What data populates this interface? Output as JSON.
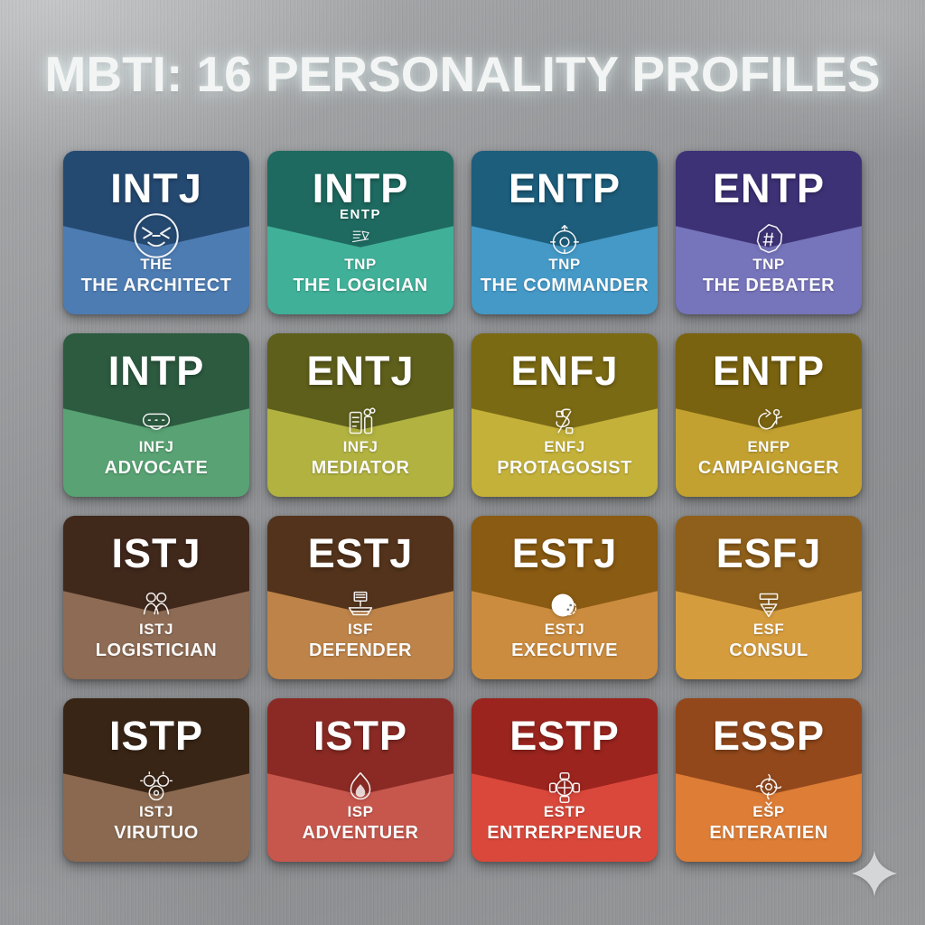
{
  "title": "MBTI: 16 PERSONALITY PROFILES",
  "colors": {
    "background": "#8f9193",
    "card_text": "#ffffff",
    "sparkle": "#d4d6d8"
  },
  "footer": {
    "sparkle_icon": "sparkle-icon"
  },
  "cards": [
    {
      "code": "INTJ",
      "pre_icon_label": "",
      "icon": "owl-icon",
      "line1": "THE",
      "line2": "THE ARCHITECT",
      "top_color": "#254a72",
      "bottom_color": "#4d7cb3"
    },
    {
      "code": "INTP",
      "pre_icon_label": "ENTP",
      "icon": "glyph-letters-icon",
      "line1": "TNP",
      "line2": "THE LOGICIAN",
      "top_color": "#1e6a60",
      "bottom_color": "#41b098"
    },
    {
      "code": "ENTP",
      "pre_icon_label": "",
      "icon": "target-icon",
      "line1": "TNP",
      "line2": "THE COMMANDER",
      "top_color": "#1d5e7c",
      "bottom_color": "#4599c7"
    },
    {
      "code": "ENTP",
      "pre_icon_label": "",
      "icon": "shield-blob-icon",
      "line1": "TNP",
      "line2": "THE DEBATER",
      "top_color": "#3e3277",
      "bottom_color": "#7674ba"
    },
    {
      "code": "INTP",
      "pre_icon_label": "",
      "icon": "speech-bubble-icon",
      "line1": "INFJ",
      "line2": "ADVOCATE",
      "top_color": "#2c5b40",
      "bottom_color": "#58a273"
    },
    {
      "code": "ENTJ",
      "pre_icon_label": "",
      "icon": "brew-machine-icon",
      "line1": "INFJ",
      "line2": "MEDIATOR",
      "top_color": "#5e5f1b",
      "bottom_color": "#b1b240"
    },
    {
      "code": "ENFJ",
      "pre_icon_label": "",
      "icon": "ribbon-scroll-icon",
      "line1": "ENFJ",
      "line2": "PROTAGOSIST",
      "top_color": "#7b6a14",
      "bottom_color": "#c3b13a"
    },
    {
      "code": "ENTP",
      "pre_icon_label": "",
      "icon": "recycle-person-icon",
      "line1": "ENFP",
      "line2": "CAMPAIGNGER",
      "top_color": "#7a6310",
      "bottom_color": "#c2a130"
    },
    {
      "code": "ISTJ",
      "pre_icon_label": "",
      "icon": "people-group-icon",
      "line1": "ISTJ",
      "line2": "LOGISTICIAN",
      "top_color": "#40281b",
      "bottom_color": "#8d6b54"
    },
    {
      "code": "ESTJ",
      "pre_icon_label": "",
      "icon": "ship-flag-icon",
      "line1": "ISF",
      "line2": "DEFENDER",
      "top_color": "#53331b",
      "bottom_color": "#bd8349"
    },
    {
      "code": "ESTJ",
      "pre_icon_label": "",
      "icon": "yinyang-moon-icon",
      "line1": "ESTJ",
      "line2": "EXECUTIVE",
      "top_color": "#8a5b12",
      "bottom_color": "#cb8c3f"
    },
    {
      "code": "ESFJ",
      "pre_icon_label": "",
      "icon": "trowel-icon",
      "line1": "ESF",
      "line2": "CONSUL",
      "top_color": "#8f601b",
      "bottom_color": "#d59c3e"
    },
    {
      "code": "ISTP",
      "pre_icon_label": "",
      "icon": "gears-icon",
      "line1": "ISTJ",
      "line2": "VIRUTUO",
      "top_color": "#392516",
      "bottom_color": "#8a6950"
    },
    {
      "code": "ISTP",
      "pre_icon_label": "",
      "icon": "flame-icon",
      "line1": "ISP",
      "line2": "ADVENTUER",
      "top_color": "#8b2a24",
      "bottom_color": "#c7574d"
    },
    {
      "code": "ESTP",
      "pre_icon_label": "",
      "icon": "compass-medal-icon",
      "line1": "ESTP",
      "line2": "ENTRERPENEUR",
      "top_color": "#9b241e",
      "bottom_color": "#d9483b"
    },
    {
      "code": "ESSP",
      "pre_icon_label": "",
      "icon": "flower-medal-icon",
      "line1": "ESP",
      "line2": "ENTERATIEN",
      "top_color": "#92481b",
      "bottom_color": "#dd7d36"
    }
  ]
}
